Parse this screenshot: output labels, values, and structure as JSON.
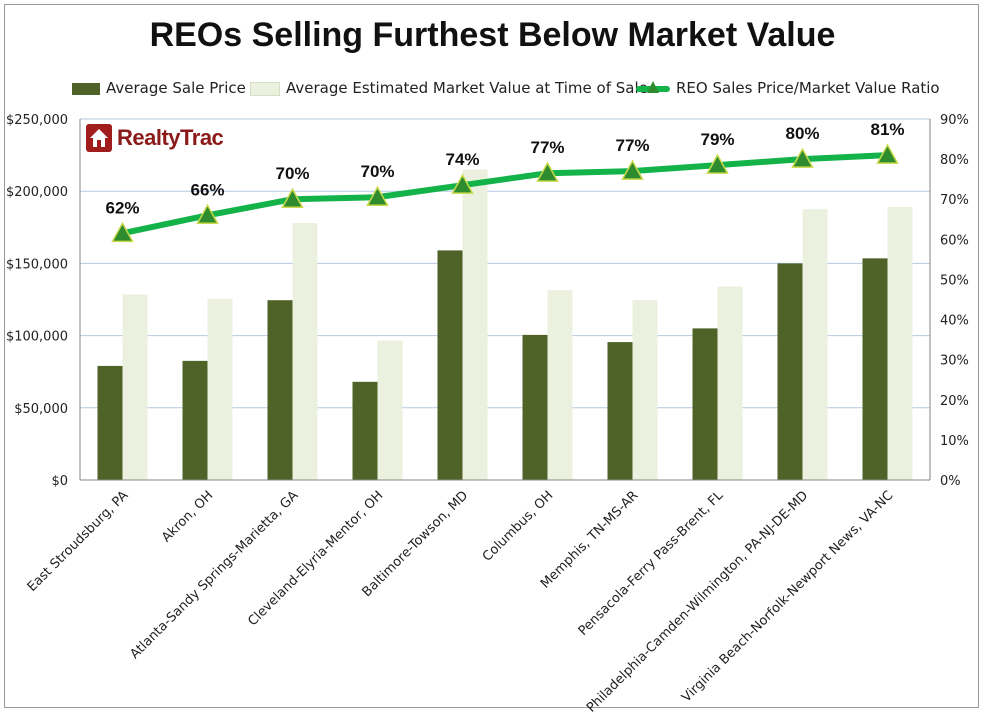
{
  "title": "REOs Selling Furthest Below Market Value",
  "logo": {
    "text": "RealtyTrac",
    "icon": "house-icon"
  },
  "colors": {
    "sale_price": "#4f6228",
    "market_value": "#ebf1de",
    "ratio_line": "#14b34a",
    "ratio_marker": "#2e8b2e",
    "gridline": "#b7c7e3",
    "logo_red": "#a11c1c"
  },
  "chart_data": {
    "type": "bar",
    "title": "REOs Selling Furthest Below Market Value",
    "categories": [
      "East Stroudsburg, PA",
      "Akron, OH",
      "Atlanta-Sandy Springs-Marietta, GA",
      "Cleveland-Elyria-Mentor, OH",
      "Baltimore-Towson, MD",
      "Columbus, OH",
      "Memphis, TN-MS-AR",
      "Pensacola-Ferry Pass-Brent, FL",
      "Philadelphia-Camden-Wilmington, PA-NJ-DE-MD",
      "Virginia Beach-Norfolk-Newport News, VA-NC"
    ],
    "series": [
      {
        "name": "Average Sale Price",
        "type": "bar",
        "axis": "left",
        "values": [
          79000,
          82500,
          124500,
          68000,
          159000,
          100500,
          95500,
          105000,
          150000,
          153500
        ]
      },
      {
        "name": "Average Estimated Market Value at Time of Sale",
        "type": "bar",
        "axis": "left",
        "values": [
          128500,
          125500,
          178000,
          96500,
          215000,
          131500,
          124500,
          134000,
          187500,
          189000
        ]
      },
      {
        "name": "REO Sales Price/Market Value Ratio",
        "type": "line",
        "axis": "right",
        "values": [
          0.615,
          0.66,
          0.7,
          0.705,
          0.735,
          0.765,
          0.77,
          0.785,
          0.8,
          0.81
        ],
        "labels": [
          "62%",
          "66%",
          "70%",
          "70%",
          "74%",
          "77%",
          "77%",
          "79%",
          "80%",
          "81%"
        ]
      }
    ],
    "y_left": {
      "min": 0,
      "max": 250000,
      "ticks": [
        0,
        50000,
        100000,
        150000,
        200000,
        250000
      ],
      "tick_labels": [
        "$0",
        "$50,000",
        "$100,000",
        "$150,000",
        "$200,000",
        "$250,000"
      ]
    },
    "y_right": {
      "min": 0,
      "max": 0.9,
      "ticks": [
        0,
        0.1,
        0.2,
        0.3,
        0.4,
        0.5,
        0.6,
        0.7,
        0.8,
        0.9
      ],
      "tick_labels": [
        "0%",
        "10%",
        "20%",
        "30%",
        "40%",
        "50%",
        "60%",
        "70%",
        "80%",
        "90%"
      ]
    },
    "grid": true,
    "legend_placement": "top"
  }
}
